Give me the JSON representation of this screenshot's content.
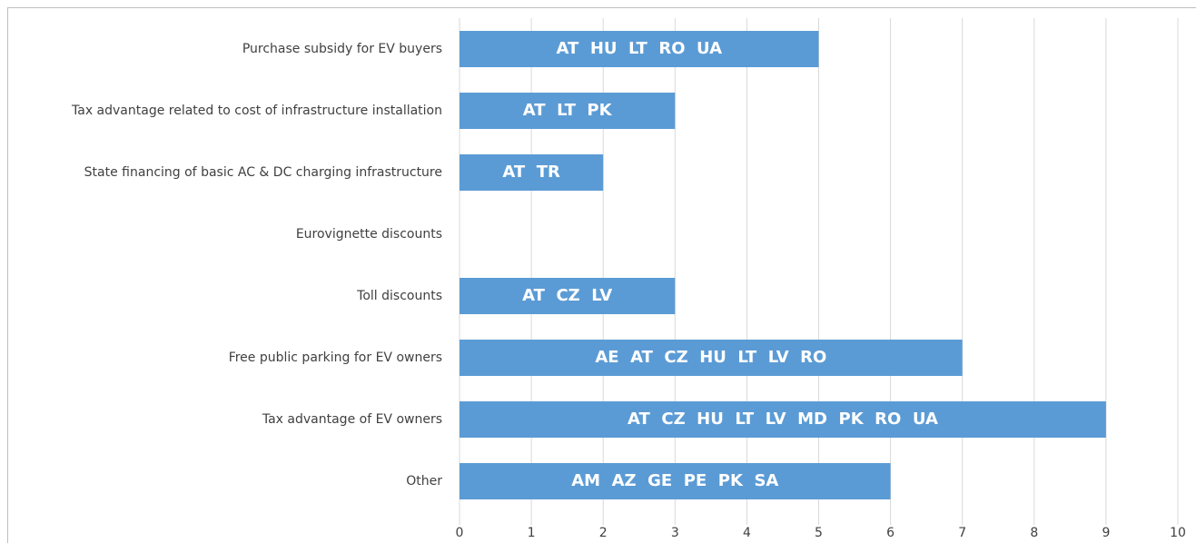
{
  "chart_data": {
    "type": "bar",
    "orientation": "horizontal",
    "categories": [
      "Purchase subsidy for EV buyers",
      "Tax advantage related to cost of infrastructure installation",
      "State financing of basic AC & DC charging infrastructure",
      "Eurovignette discounts",
      "Toll discounts",
      "Free public parking for EV owners",
      "Tax advantage of EV owners",
      "Other"
    ],
    "values": [
      5,
      3,
      2,
      0,
      3,
      7,
      9,
      6
    ],
    "annotations": [
      "AT  HU  LT  RO  UA",
      "AT  LT  PK",
      "AT  TR",
      null,
      "AT  CZ  LV",
      "AE  AT  CZ  HU  LT  LV  RO",
      "AT  CZ  HU  LT  LV  MD  PK  RO  UA",
      "AM  AZ  GE  PE  PK  SA"
    ],
    "color": "#5b9bd5",
    "xlim": [
      0,
      10
    ],
    "xticks": [
      0,
      1,
      2,
      3,
      4,
      5,
      6,
      7,
      8,
      9,
      10
    ],
    "grid": true
  }
}
